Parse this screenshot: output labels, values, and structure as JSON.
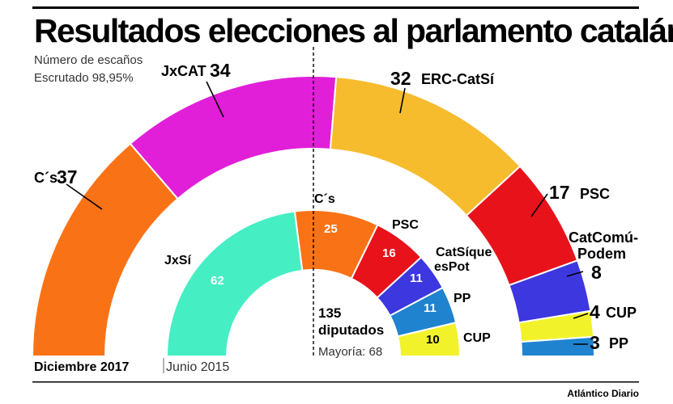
{
  "title": "Resultados elecciones al parlamento catalán",
  "subtitle_lines": [
    "Número de escaños",
    "Escrutado 98,95%"
  ],
  "source": "Atlántico Diario",
  "colors": {
    "Cs": "#F97316",
    "JxCAT": "#E11FD8",
    "ERC-CatSi": "#F6BC2E",
    "PSC": "#E8121B",
    "CatComu-Podem": "#3D37E0",
    "CUP": "#F2F22A",
    "PP": "#1F83D0",
    "JxSi": "#45EEC3"
  },
  "chart_data": [
    {
      "type": "pie",
      "variant": "semicircle",
      "title": "Diciembre 2017",
      "total_seats": 135,
      "series": [
        {
          "name": "C´s",
          "value": 37,
          "color": "#F97316"
        },
        {
          "name": "JxCAT",
          "value": 34,
          "color": "#E11FD8"
        },
        {
          "name": "ERC-CatSí",
          "value": 32,
          "color": "#F6BC2E"
        },
        {
          "name": "PSC",
          "value": 17,
          "color": "#E8121B"
        },
        {
          "name": "CatComú-Podem",
          "value": 8,
          "color": "#3D37E0"
        },
        {
          "name": "CUP",
          "value": 4,
          "color": "#F2F22A"
        },
        {
          "name": "PP",
          "value": 3,
          "color": "#1F83D0"
        }
      ]
    },
    {
      "type": "pie",
      "variant": "semicircle",
      "title": "Junio 2015",
      "total_seats": 135,
      "series": [
        {
          "name": "JxSí",
          "value": 62,
          "color": "#45EEC3"
        },
        {
          "name": "C´s",
          "value": 25,
          "color": "#F97316"
        },
        {
          "name": "PSC",
          "value": 16,
          "color": "#E8121B"
        },
        {
          "name": "CatSíque esPot",
          "value": 11,
          "color": "#3D37E0"
        },
        {
          "name": "PP",
          "value": 11,
          "color": "#1F83D0"
        },
        {
          "name": "CUP",
          "value": 10,
          "color": "#F2F22A"
        }
      ]
    }
  ],
  "summary": {
    "total_number": "135",
    "total_label": "diputados",
    "majority_text": "Mayoría: 68"
  }
}
